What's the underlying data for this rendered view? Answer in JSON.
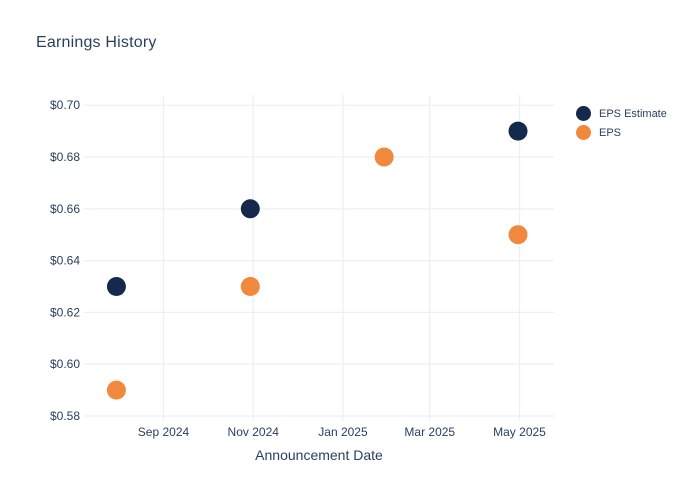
{
  "colors": {
    "background": "#ffffff",
    "text": "#2a3f5f",
    "grid": "#ebf0f8",
    "eps_estimate": "#14294b",
    "eps": "#f0883e"
  },
  "chart_data": {
    "type": "scatter",
    "title": "Earnings History",
    "xlabel": "Announcement Date",
    "ylabel": "",
    "grid": true,
    "legend_position": "right",
    "ylim": [
      0.58,
      0.7
    ],
    "x_ticks": [
      {
        "label": "Sep 2024",
        "date": "2024-09-01"
      },
      {
        "label": "Nov 2024",
        "date": "2024-11-01"
      },
      {
        "label": "Jan 2025",
        "date": "2025-01-01"
      },
      {
        "label": "Mar 2025",
        "date": "2025-03-01"
      },
      {
        "label": "May 2025",
        "date": "2025-05-01"
      }
    ],
    "y_ticks": [
      {
        "label": "$0.58",
        "value": 0.58
      },
      {
        "label": "$0.60",
        "value": 0.6
      },
      {
        "label": "$0.62",
        "value": 0.62
      },
      {
        "label": "$0.64",
        "value": 0.64
      },
      {
        "label": "$0.66",
        "value": 0.66
      },
      {
        "label": "$0.68",
        "value": 0.68
      },
      {
        "label": "$0.70",
        "value": 0.7
      }
    ],
    "series": [
      {
        "name": "EPS Estimate",
        "color": "#14294b",
        "points": [
          {
            "x": "2024-07-31",
            "y": 0.63
          },
          {
            "x": "2024-10-30",
            "y": 0.66
          },
          {
            "x": "2025-04-30",
            "y": 0.69
          }
        ]
      },
      {
        "name": "EPS",
        "color": "#f0883e",
        "points": [
          {
            "x": "2024-07-31",
            "y": 0.59
          },
          {
            "x": "2024-10-30",
            "y": 0.63
          },
          {
            "x": "2025-01-29",
            "y": 0.68
          },
          {
            "x": "2025-04-30",
            "y": 0.65
          }
        ]
      }
    ]
  }
}
